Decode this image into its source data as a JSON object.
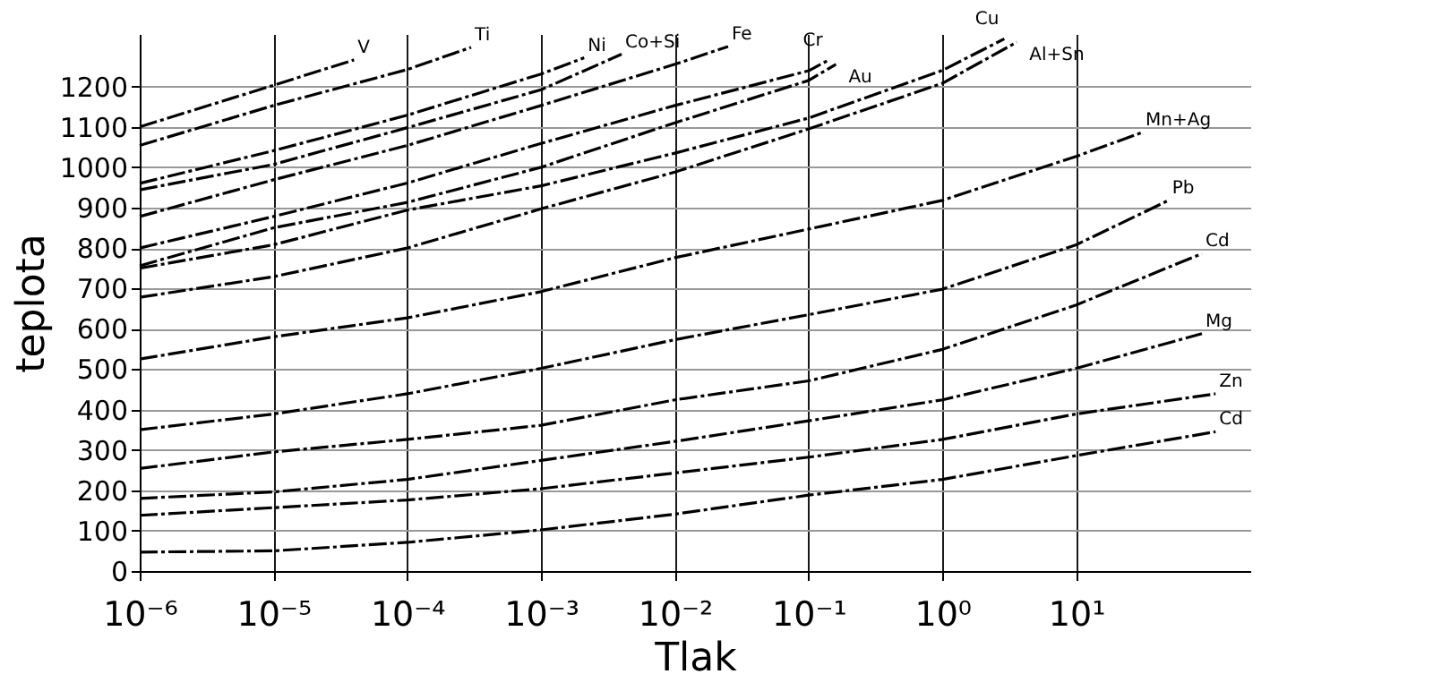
{
  "chart_data": {
    "type": "line",
    "xlabel": "Tlak",
    "ylabel": "teplota",
    "log": "x",
    "grid": true,
    "marker": "none",
    "line_style": "dashed",
    "xlim": [
      1e-06,
      200
    ],
    "ylim": [
      0,
      1330
    ],
    "xticks": [
      {
        "value": 1e-06,
        "label": "10⁻⁶"
      },
      {
        "value": 1e-05,
        "label": "10⁻⁵"
      },
      {
        "value": 0.0001,
        "label": "10⁻⁴"
      },
      {
        "value": 0.001,
        "label": "10⁻³"
      },
      {
        "value": 0.01,
        "label": "10⁻²"
      },
      {
        "value": 0.1,
        "label": "10⁻¹"
      },
      {
        "value": 1,
        "label": "10⁰"
      },
      {
        "value": 10,
        "label": "10¹"
      }
    ],
    "yticks": [
      0,
      100,
      200,
      300,
      400,
      500,
      600,
      700,
      800,
      900,
      1000,
      1100,
      1200
    ],
    "series": [
      {
        "name": "V",
        "color": "#000000",
        "x": [
          1e-06,
          1e-05,
          4e-05
        ],
        "values": [
          1100,
          1203,
          1266
        ]
      },
      {
        "name": "Ti",
        "color": "#000000",
        "x": [
          1e-06,
          1e-05,
          0.0001,
          0.0003
        ],
        "values": [
          1054,
          1153,
          1242,
          1297
        ]
      },
      {
        "name": "Ni",
        "color": "#000000",
        "x": [
          1e-06,
          1e-05,
          0.0001,
          0.001,
          0.0021
        ],
        "values": [
          960,
          1041,
          1129,
          1231,
          1271
        ]
      },
      {
        "name": "Co+Si",
        "color": "#000000",
        "x": [
          1e-06,
          1e-05,
          0.0001,
          0.001,
          0.004
        ],
        "values": [
          944,
          1007,
          1098,
          1192,
          1280
        ]
      },
      {
        "name": "Fe",
        "color": "#000000",
        "x": [
          1e-06,
          1e-05,
          0.0001,
          0.001,
          0.01,
          0.025
        ],
        "values": [
          878,
          969,
          1054,
          1153,
          1255,
          1299
        ]
      },
      {
        "name": "Cr",
        "color": "#000000",
        "x": [
          1e-06,
          1e-05,
          0.0001,
          0.001,
          0.01,
          0.1,
          0.14
        ],
        "values": [
          800,
          878,
          961,
          1059,
          1153,
          1239,
          1265
        ]
      },
      {
        "name": "Au",
        "color": "#000000",
        "x": [
          1e-06,
          1e-05,
          0.0001,
          0.001,
          0.01,
          0.1,
          0.16
        ],
        "values": [
          756,
          850,
          913,
          1000,
          1110,
          1215,
          1255
        ]
      },
      {
        "name": "Cu",
        "color": "#000000",
        "x": [
          1e-06,
          1e-05,
          0.0001,
          0.001,
          0.01,
          0.1,
          1,
          2.9
        ],
        "values": [
          750,
          808,
          894,
          954,
          1035,
          1122,
          1240,
          1318
        ]
      },
      {
        "name": "Al+Sn",
        "color": "#000000",
        "x": [
          1e-06,
          1e-05,
          0.0001,
          0.001,
          0.01,
          0.1,
          1,
          3.6
        ],
        "values": [
          678,
          729,
          800,
          897,
          988,
          1095,
          1208,
          1310
        ]
      },
      {
        "name": "Mn+Ag",
        "color": "#000000",
        "x": [
          1e-06,
          1e-05,
          0.0001,
          0.001,
          0.01,
          0.1,
          1,
          10,
          31
        ],
        "values": [
          525,
          580,
          627,
          692,
          776,
          847,
          918,
          1027,
          1086
        ]
      },
      {
        "name": "Pb",
        "color": "#000000",
        "x": [
          1e-06,
          1e-05,
          0.0001,
          0.001,
          0.01,
          0.1,
          1,
          10,
          49
        ],
        "values": [
          350,
          389,
          439,
          502,
          573,
          635,
          698,
          808,
          918
        ]
      },
      {
        "name": "Cd",
        "color": "#000000",
        "x": [
          1e-06,
          1e-05,
          0.0001,
          0.001,
          0.01,
          0.1,
          1,
          10,
          87
        ],
        "values": [
          254,
          295,
          326,
          361,
          424,
          471,
          549,
          659,
          786
        ]
      },
      {
        "name": "Mg",
        "color": "#000000",
        "x": [
          1e-06,
          1e-05,
          0.0001,
          0.001,
          0.01,
          0.1,
          1,
          10,
          87
        ],
        "values": [
          180,
          196,
          227,
          274,
          321,
          372,
          424,
          502,
          588
        ]
      },
      {
        "name": "Zn",
        "color": "#000000",
        "x": [
          1e-06,
          1e-05,
          0.0001,
          0.001,
          0.01,
          0.1,
          1,
          10,
          110
        ],
        "values": [
          138,
          157,
          176,
          204,
          243,
          282,
          326,
          389,
          439
        ]
      },
      {
        "name": "Cd",
        "color": "#000000",
        "x": [
          1e-06,
          1e-05,
          0.0001,
          0.001,
          0.01,
          0.1,
          1,
          10,
          110
        ],
        "values": [
          47,
          50,
          71,
          102,
          141,
          188,
          227,
          286,
          345
        ]
      }
    ]
  }
}
